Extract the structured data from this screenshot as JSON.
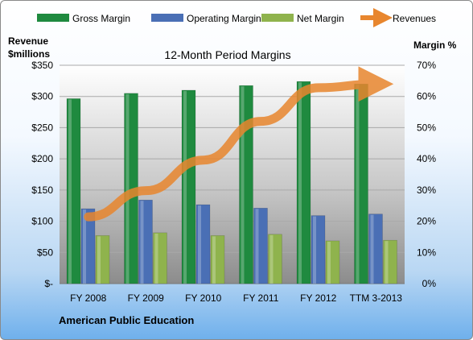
{
  "chart_data": {
    "type": "bar",
    "title": "12-Month Period Margins",
    "categories": [
      "FY 2008",
      "FY 2009",
      "FY 2010",
      "FY 2011",
      "FY 2012",
      "TTM 3-2013"
    ],
    "series": [
      {
        "name": "Gross Margin",
        "axis": "right",
        "values": [
          59.3,
          61.0,
          62.0,
          63.5,
          64.8,
          64.0
        ],
        "color": "#1f8a3f"
      },
      {
        "name": "Operating Margin",
        "axis": "right",
        "values": [
          24.0,
          26.8,
          25.3,
          24.2,
          21.8,
          22.3
        ],
        "color": "#4a6fb5"
      },
      {
        "name": "Net Margin",
        "axis": "right",
        "values": [
          15.4,
          16.3,
          15.4,
          15.8,
          13.7,
          13.9
        ],
        "color": "#8fb34d"
      },
      {
        "name": "Revenues",
        "axis": "left",
        "type": "line",
        "values": [
          107,
          149,
          198,
          260,
          314,
          320
        ],
        "color": "#e8862e"
      }
    ],
    "y_left": {
      "label_line1": "Revenue",
      "label_line2": "$millions",
      "ticks": [
        "$-",
        "$50",
        "$100",
        "$150",
        "$200",
        "$250",
        "$300",
        "$350"
      ],
      "range": [
        0,
        350
      ]
    },
    "y_right": {
      "label": "Margin %",
      "ticks": [
        "0%",
        "10%",
        "20%",
        "30%",
        "40%",
        "50%",
        "60%",
        "70%"
      ],
      "range": [
        0,
        70
      ]
    },
    "legend_position": "top",
    "grid": true
  },
  "footer_label": "American Public Education"
}
